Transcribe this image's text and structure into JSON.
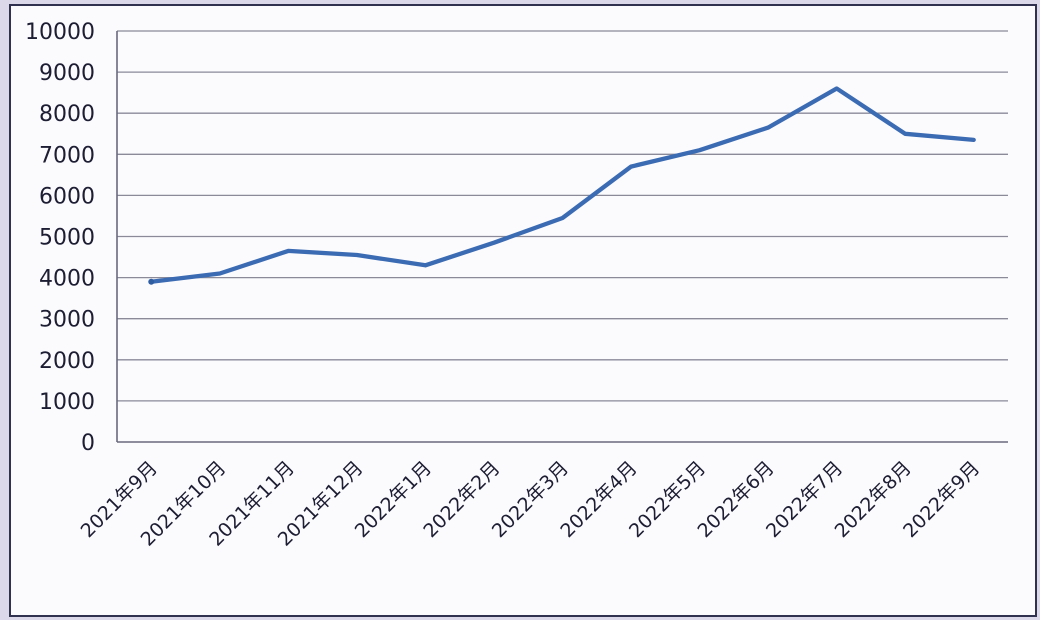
{
  "chart_data": {
    "type": "line",
    "title": "",
    "xlabel": "",
    "ylabel": "",
    "categories": [
      "2021年9月",
      "2021年10月",
      "2021年11月",
      "2021年12月",
      "2022年1月",
      "2022年2月",
      "2022年3月",
      "2022年4月",
      "2022年5月",
      "2022年6月",
      "2022年7月",
      "2022年8月",
      "2022年9月"
    ],
    "values": [
      3900,
      4100,
      4650,
      4550,
      4300,
      4850,
      5450,
      6700,
      7100,
      7650,
      8600,
      7500,
      7350
    ],
    "ylim": [
      0,
      10000
    ],
    "ytick_step": 1000,
    "y_tick_labels": [
      "0",
      "1000",
      "2000",
      "3000",
      "4000",
      "5000",
      "6000",
      "7000",
      "8000",
      "9000",
      "10000"
    ],
    "grid": "horizontal-only",
    "legend_position": "none",
    "x_label_rotation_deg": -45,
    "colors": {
      "line": "#3b6bb2",
      "line_start_cap": "#2f5da2",
      "gridline": "#8a8a99",
      "axis": "#69697f",
      "tick_text": "#1d1d33",
      "plot_background": "#fbfbfe",
      "frame_border": "#30304f",
      "outer_background": "#dbd8ea"
    }
  }
}
